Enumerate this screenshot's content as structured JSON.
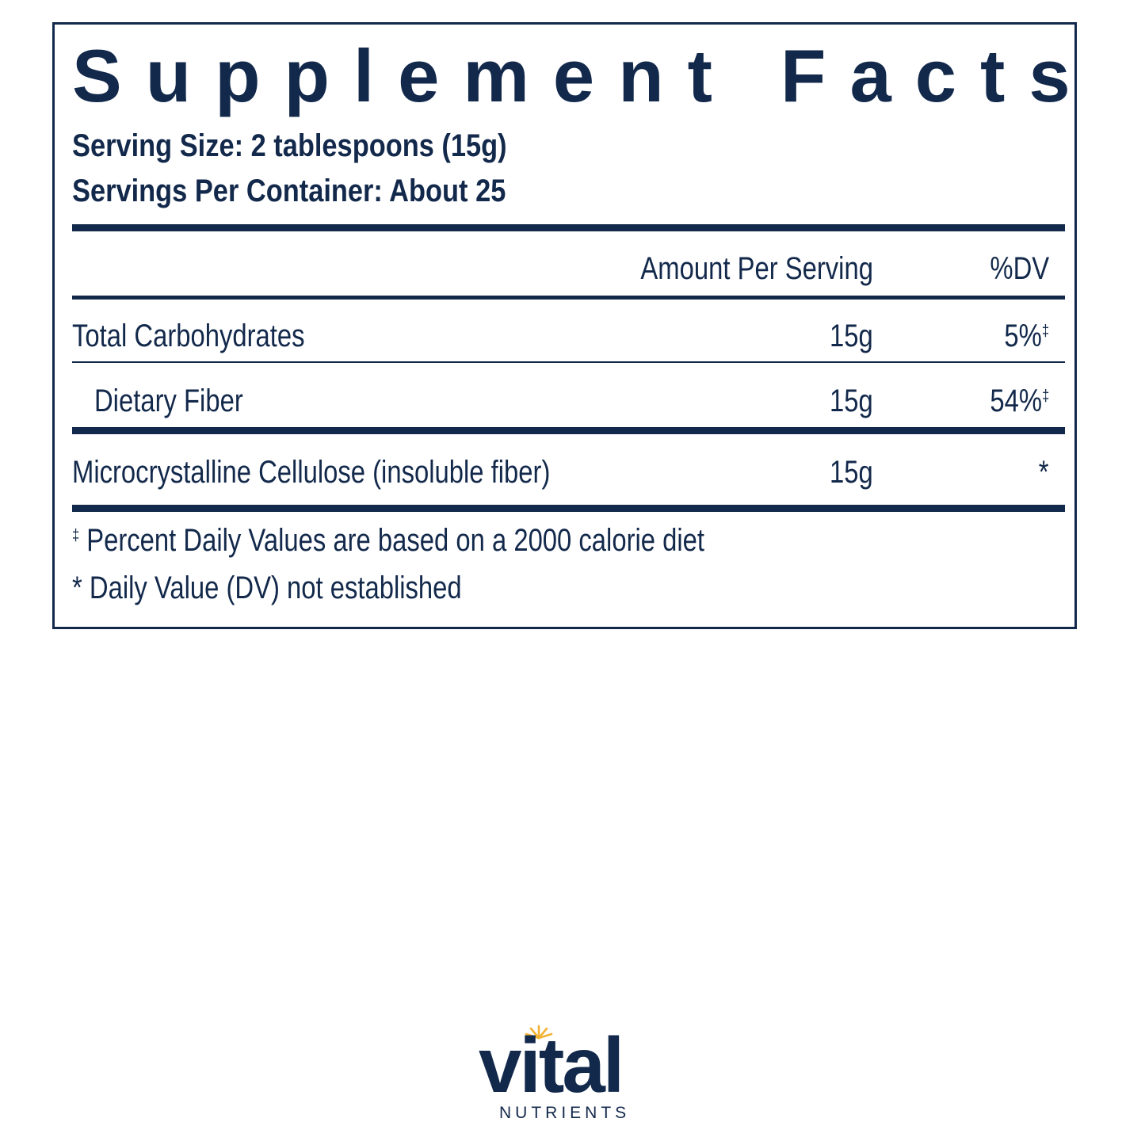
{
  "label": {
    "title": "Supplement Facts",
    "serving_size": "Serving Size: 2 tablespoons (15g)",
    "servings_per_container": "Servings Per Container: About 25",
    "columns": {
      "amount": "Amount Per Serving",
      "dv": "%DV"
    },
    "rows": [
      {
        "name": "Total Carbohydrates",
        "amount": "15g",
        "dv": "5%",
        "dv_mark": "‡"
      },
      {
        "name": "Dietary Fiber",
        "amount": "15g",
        "dv": "54%",
        "dv_mark": "‡"
      },
      {
        "name": "Microcrystalline Cellulose (insoluble fiber)",
        "amount": "15g",
        "dv": "*",
        "dv_mark": ""
      }
    ],
    "footnotes": [
      {
        "mark": "‡",
        "text": " Percent Daily Values are based on a 2000 calorie diet"
      },
      {
        "mark": "*",
        "text": " Daily Value (DV) not established"
      }
    ]
  },
  "brand": {
    "name": "vital",
    "tagline": "NUTRIENTS",
    "sun_color": "#f2b233"
  },
  "colors": {
    "ink": "#13294b",
    "background": "#ffffff"
  }
}
